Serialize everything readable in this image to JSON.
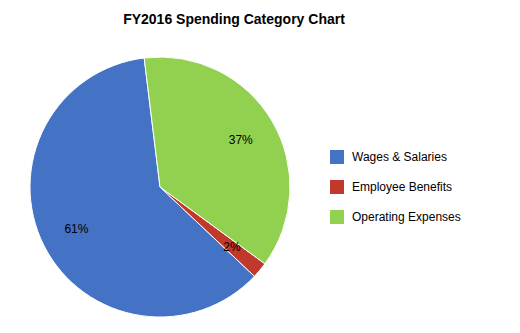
{
  "chart_data": {
    "type": "pie",
    "title": "FY2016 Spending Category Chart",
    "categories": [
      "Wages & Salaries",
      "Employee Benefits",
      "Operating Expenses"
    ],
    "values": [
      61,
      2,
      37
    ],
    "value_labels": [
      "61%",
      "2%",
      "37%"
    ],
    "colors": [
      "#4472C4",
      "#C0392B",
      "#92D050"
    ],
    "data_labels": true,
    "legend": "right"
  }
}
